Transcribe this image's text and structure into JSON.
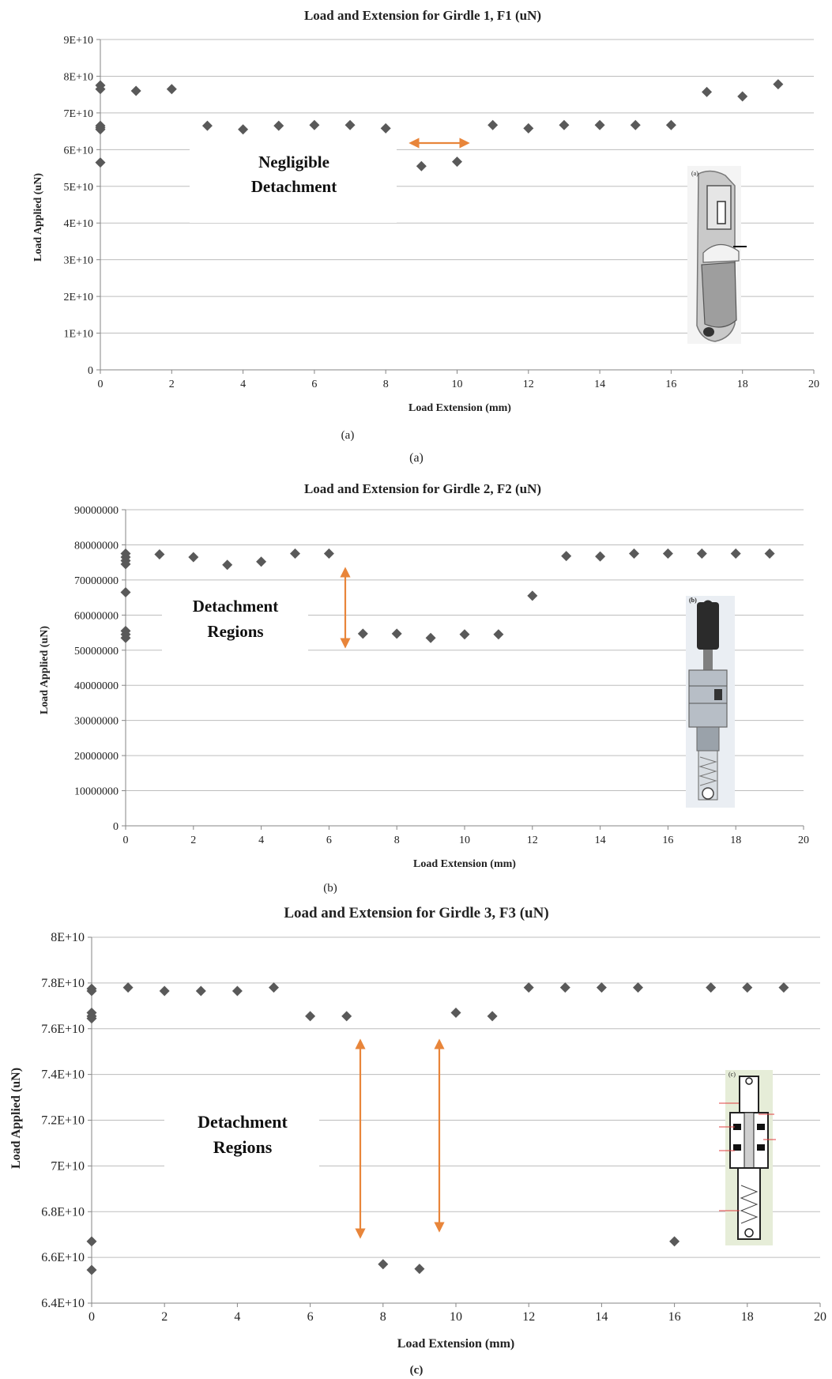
{
  "chart_data": [
    {
      "type": "scatter",
      "title": "Load and Extension for Girdle 1, F1 (uN)",
      "xlabel": "Load Extension (mm)",
      "ylabel": "Load Applied (uN)",
      "xlim": [
        0,
        20
      ],
      "ylim": [
        0,
        90000000000
      ],
      "x_ticks": [
        "0",
        "2",
        "4",
        "6",
        "8",
        "10",
        "12",
        "14",
        "16",
        "18",
        "20"
      ],
      "y_ticks": [
        "0",
        "1E+10",
        "2E+10",
        "3E+10",
        "4E+10",
        "5E+10",
        "6E+10",
        "7E+10",
        "8E+10",
        "9E+10"
      ],
      "grid": true,
      "annotation_lines": [
        "Negligible",
        "Detachment"
      ],
      "caption": "(a)",
      "inset_icon": "girdle-1-device-image",
      "points": [
        {
          "x": 0,
          "y": 77500000000
        },
        {
          "x": 0,
          "y": 76500000000
        },
        {
          "x": 0,
          "y": 66500000000
        },
        {
          "x": 0,
          "y": 66000000000
        },
        {
          "x": 0,
          "y": 65500000000
        },
        {
          "x": 0,
          "y": 56500000000
        },
        {
          "x": 1,
          "y": 76000000000
        },
        {
          "x": 2,
          "y": 76500000000
        },
        {
          "x": 3,
          "y": 66500000000
        },
        {
          "x": 4,
          "y": 65500000000
        },
        {
          "x": 5,
          "y": 66500000000
        },
        {
          "x": 6,
          "y": 66700000000
        },
        {
          "x": 7,
          "y": 66700000000
        },
        {
          "x": 8,
          "y": 65800000000
        },
        {
          "x": 9,
          "y": 55500000000
        },
        {
          "x": 10,
          "y": 56700000000
        },
        {
          "x": 11,
          "y": 66700000000
        },
        {
          "x": 12,
          "y": 65800000000
        },
        {
          "x": 13,
          "y": 66700000000
        },
        {
          "x": 14,
          "y": 66700000000
        },
        {
          "x": 15,
          "y": 66700000000
        },
        {
          "x": 16,
          "y": 66700000000
        },
        {
          "x": 17,
          "y": 75700000000
        },
        {
          "x": 18,
          "y": 74500000000
        },
        {
          "x": 19,
          "y": 77800000000
        }
      ]
    },
    {
      "type": "scatter",
      "title": "Load and Extension for Girdle 2, F2 (uN)",
      "xlabel": "Load Extension (mm)",
      "ylabel": "Load Applied (uN)",
      "xlim": [
        0,
        20
      ],
      "ylim": [
        0,
        90000000
      ],
      "x_ticks": [
        "0",
        "2",
        "4",
        "6",
        "8",
        "10",
        "12",
        "14",
        "16",
        "18",
        "20"
      ],
      "y_ticks": [
        "0",
        "10000000",
        "20000000",
        "30000000",
        "40000000",
        "50000000",
        "60000000",
        "70000000",
        "80000000",
        "90000000"
      ],
      "grid": true,
      "annotation_lines": [
        "Detachment",
        "Regions"
      ],
      "caption": "(b)",
      "inset_icon": "girdle-2-device-image",
      "points": [
        {
          "x": 0,
          "y": 77500000
        },
        {
          "x": 0,
          "y": 76500000
        },
        {
          "x": 0,
          "y": 75500000
        },
        {
          "x": 0,
          "y": 74500000
        },
        {
          "x": 0,
          "y": 66500000
        },
        {
          "x": 0,
          "y": 55500000
        },
        {
          "x": 0,
          "y": 54500000
        },
        {
          "x": 0,
          "y": 53500000
        },
        {
          "x": 1,
          "y": 77300000
        },
        {
          "x": 2,
          "y": 76500000
        },
        {
          "x": 3,
          "y": 74300000
        },
        {
          "x": 4,
          "y": 75200000
        },
        {
          "x": 5,
          "y": 77500000
        },
        {
          "x": 6,
          "y": 77500000
        },
        {
          "x": 7,
          "y": 54700000
        },
        {
          "x": 8,
          "y": 54700000
        },
        {
          "x": 9,
          "y": 53500000
        },
        {
          "x": 10,
          "y": 54500000
        },
        {
          "x": 11,
          "y": 54500000
        },
        {
          "x": 12,
          "y": 65500000
        },
        {
          "x": 13,
          "y": 76800000
        },
        {
          "x": 14,
          "y": 76700000
        },
        {
          "x": 15,
          "y": 77500000
        },
        {
          "x": 16,
          "y": 77500000
        },
        {
          "x": 17,
          "y": 77500000
        },
        {
          "x": 18,
          "y": 77500000
        },
        {
          "x": 19,
          "y": 77500000
        }
      ]
    },
    {
      "type": "scatter",
      "title": "Load and Extension for Girdle 3, F3 (uN)",
      "xlabel": "Load Extension (mm)",
      "ylabel": "Load Applied (uN)",
      "xlim": [
        0,
        20
      ],
      "ylim": [
        64000000000,
        80000000000
      ],
      "x_ticks": [
        "0",
        "2",
        "4",
        "6",
        "8",
        "10",
        "12",
        "14",
        "16",
        "18",
        "20"
      ],
      "y_ticks": [
        "6.4E+10",
        "6.6E+10",
        "6.8E+10",
        "7E+10",
        "7.2E+10",
        "7.4E+10",
        "7.6E+10",
        "7.8E+10",
        "8E+10"
      ],
      "grid": true,
      "annotation_lines": [
        "Detachment",
        "Regions"
      ],
      "caption": "(c)",
      "inset_icon": "girdle-3-device-image",
      "points": [
        {
          "x": 0,
          "y": 77750000000
        },
        {
          "x": 0,
          "y": 77650000000
        },
        {
          "x": 0,
          "y": 76700000000
        },
        {
          "x": 0,
          "y": 76550000000
        },
        {
          "x": 0,
          "y": 76450000000
        },
        {
          "x": 0,
          "y": 66700000000
        },
        {
          "x": 0,
          "y": 65450000000
        },
        {
          "x": 1,
          "y": 77800000000
        },
        {
          "x": 2,
          "y": 77650000000
        },
        {
          "x": 3,
          "y": 77650000000
        },
        {
          "x": 4,
          "y": 77650000000
        },
        {
          "x": 5,
          "y": 77800000000
        },
        {
          "x": 6,
          "y": 76550000000
        },
        {
          "x": 7,
          "y": 76550000000
        },
        {
          "x": 8,
          "y": 65700000000
        },
        {
          "x": 9,
          "y": 65500000000
        },
        {
          "x": 10,
          "y": 76700000000
        },
        {
          "x": 11,
          "y": 76550000000
        },
        {
          "x": 12,
          "y": 77800000000
        },
        {
          "x": 13,
          "y": 77800000000
        },
        {
          "x": 14,
          "y": 77800000000
        },
        {
          "x": 15,
          "y": 77800000000
        },
        {
          "x": 16,
          "y": 66700000000
        },
        {
          "x": 17,
          "y": 77800000000
        },
        {
          "x": 18,
          "y": 77800000000
        },
        {
          "x": 19,
          "y": 77800000000
        }
      ]
    }
  ],
  "between_caption": "(a)",
  "inset_labels": [
    "(a)",
    "(b)",
    "(c)"
  ],
  "colors": {
    "points": "#595959",
    "arrow": "#e8853a",
    "grid": "#bdbdbd"
  }
}
